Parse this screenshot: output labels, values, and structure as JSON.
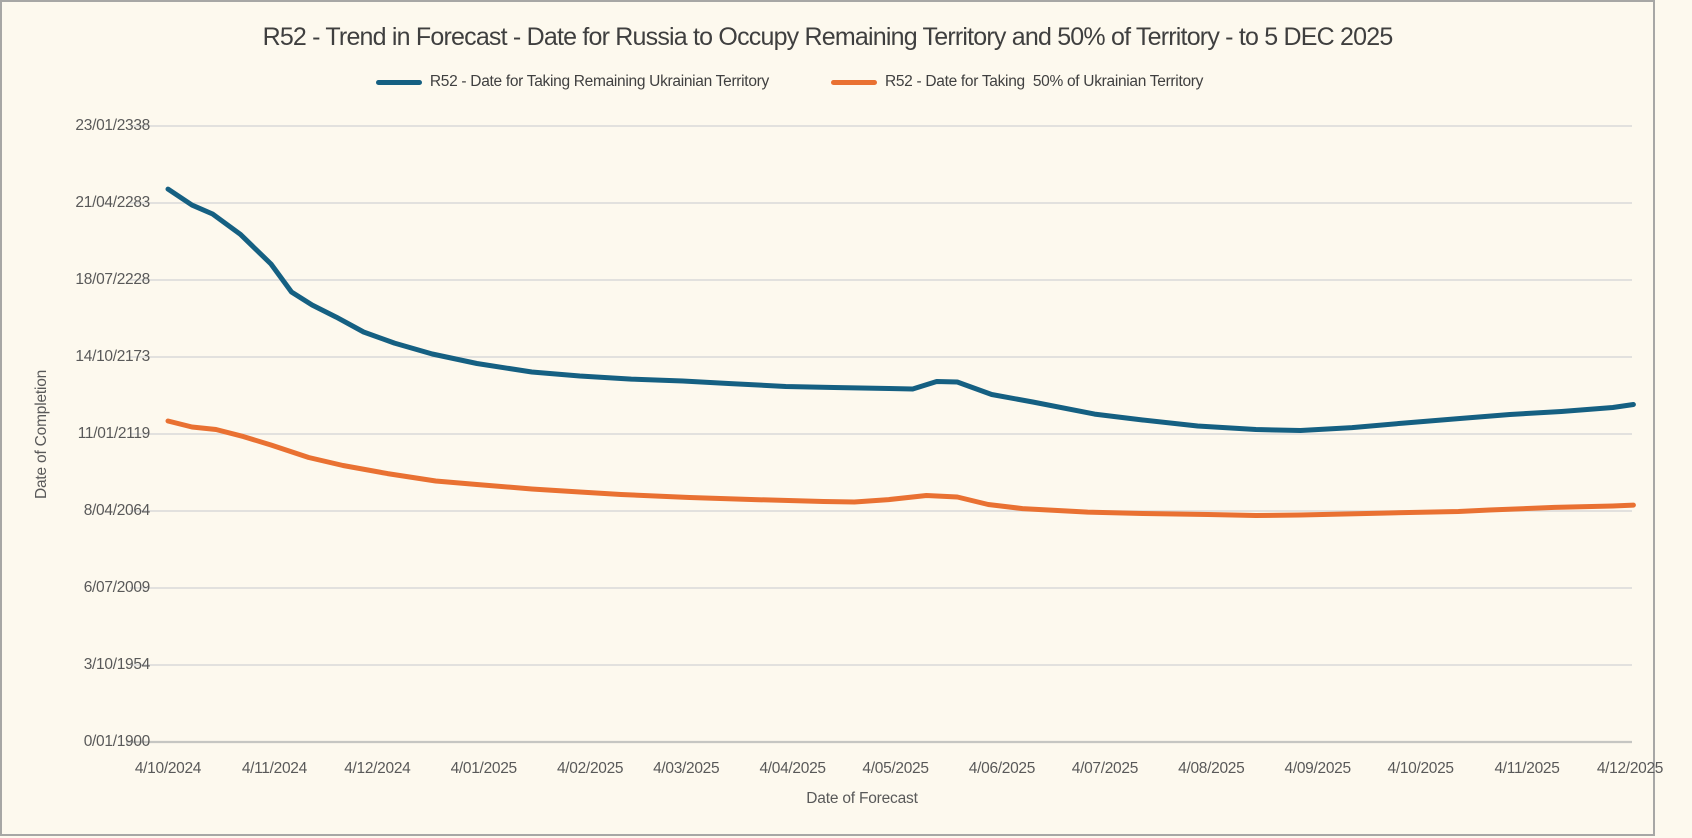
{
  "title": "R52 - Trend in Forecast - Date for Russia to Occupy Remaining Territory and 50% of Territory - to 5 DEC 2025",
  "colors": {
    "background": "#FDF9EE",
    "frame_border": "#A7A7A5",
    "gridline": "#D9D9D9",
    "axis_line": "#C6C6C2",
    "title_text": "#3F3F3F",
    "tick_text": "#595959",
    "series_remaining": "#156082",
    "series_50pct": "#E97132"
  },
  "legend": {
    "items": [
      {
        "label": "R52 - Date for Taking Remaining Ukrainian Territory",
        "color": "#156082"
      },
      {
        "label": "R52 - Date for Taking  50% of Ukrainian Territory",
        "color": "#E97132"
      }
    ]
  },
  "axes": {
    "y_title": "Date of Completion",
    "x_title": "Date of Forecast",
    "y_tick_labels_bottom_to_top": [
      "0/01/1900",
      "3/10/1954",
      "6/07/2009",
      "8/04/2064",
      "11/01/2119",
      "14/10/2173",
      "18/07/2228",
      "21/04/2283",
      "23/01/2338"
    ],
    "x_tick_labels": [
      "4/10/2024",
      "4/11/2024",
      "4/12/2024",
      "4/01/2025",
      "4/02/2025",
      "4/03/2025",
      "4/04/2025",
      "4/05/2025",
      "4/06/2025",
      "4/07/2025",
      "4/08/2025",
      "4/09/2025",
      "4/10/2025",
      "4/11/2025",
      "4/12/2025"
    ]
  },
  "chart_data": {
    "type": "line",
    "title": "R52 - Trend in Forecast - Date for Russia to Occupy Remaining Territory and 50% of Territory - to 5 DEC 2025",
    "xlabel": "Date of Forecast",
    "ylabel": "Date of Completion",
    "x_tick_labels": [
      "4/10/2024",
      "4/11/2024",
      "4/12/2024",
      "4/01/2025",
      "4/02/2025",
      "4/03/2025",
      "4/04/2025",
      "4/05/2025",
      "4/06/2025",
      "4/07/2025",
      "4/08/2025",
      "4/09/2025",
      "4/10/2025",
      "4/11/2025",
      "4/12/2025"
    ],
    "x_tick_day_offsets": [
      0,
      31,
      61,
      92,
      123,
      151,
      182,
      212,
      243,
      273,
      304,
      335,
      365,
      396,
      426
    ],
    "x_range_day_offsets": [
      0,
      427
    ],
    "x_note": "day offset from first forecast 4/10/2024; final point 5/12/2025",
    "y_tick_labels_bottom_to_top": [
      "0/01/1900",
      "3/10/1954",
      "6/07/2009",
      "8/04/2064",
      "11/01/2119",
      "14/10/2173",
      "18/07/2228",
      "21/04/2283",
      "23/01/2338"
    ],
    "y_axis_note": "dates as Excel day serials; gridline spacing = 20000 days (~54.76 years)",
    "y_range_years": [
      1900,
      2338.1
    ],
    "grid": "horizontal",
    "legend_position": "top-center",
    "series": [
      {
        "name": "R52 - Date for Taking Remaining Ukrainian Territory",
        "color": "#156082",
        "points_day_vs_year": [
          [
            0,
            2293.2
          ],
          [
            7,
            2281.8
          ],
          [
            13,
            2275.5
          ],
          [
            21,
            2261.2
          ],
          [
            30,
            2239.9
          ],
          [
            36,
            2220.0
          ],
          [
            42,
            2210.8
          ],
          [
            49,
            2202.2
          ],
          [
            57,
            2191.6
          ],
          [
            66,
            2183.7
          ],
          [
            77,
            2175.9
          ],
          [
            90,
            2169.2
          ],
          [
            106,
            2163.1
          ],
          [
            120,
            2160.3
          ],
          [
            135,
            2158.1
          ],
          [
            150,
            2156.7
          ],
          [
            164,
            2154.9
          ],
          [
            180,
            2152.8
          ],
          [
            194,
            2152.1
          ],
          [
            210,
            2151.4
          ],
          [
            217,
            2151.0
          ],
          [
            224,
            2156.4
          ],
          [
            230,
            2156.0
          ],
          [
            240,
            2147.1
          ],
          [
            252,
            2141.8
          ],
          [
            270,
            2133.2
          ],
          [
            284,
            2129.0
          ],
          [
            300,
            2124.7
          ],
          [
            317,
            2122.2
          ],
          [
            330,
            2121.5
          ],
          [
            345,
            2123.6
          ],
          [
            360,
            2126.8
          ],
          [
            376,
            2130.0
          ],
          [
            391,
            2132.9
          ],
          [
            406,
            2135.0
          ],
          [
            421,
            2137.9
          ],
          [
            427,
            2140.0
          ]
        ]
      },
      {
        "name": "R52 - Date for Taking  50% of Ukrainian Territory",
        "color": "#E97132",
        "points_day_vs_year": [
          [
            0,
            2128.3
          ],
          [
            7,
            2124.0
          ],
          [
            14,
            2122.2
          ],
          [
            22,
            2117.2
          ],
          [
            30,
            2111.2
          ],
          [
            41,
            2102.3
          ],
          [
            51,
            2096.6
          ],
          [
            64,
            2090.9
          ],
          [
            78,
            2085.6
          ],
          [
            90,
            2083.1
          ],
          [
            106,
            2079.9
          ],
          [
            120,
            2077.8
          ],
          [
            132,
            2076.0
          ],
          [
            152,
            2073.9
          ],
          [
            171,
            2072.4
          ],
          [
            191,
            2071.0
          ],
          [
            200,
            2070.7
          ],
          [
            210,
            2072.4
          ],
          [
            221,
            2075.3
          ],
          [
            230,
            2074.2
          ],
          [
            239,
            2068.9
          ],
          [
            249,
            2066.0
          ],
          [
            268,
            2063.5
          ],
          [
            284,
            2062.5
          ],
          [
            303,
            2061.8
          ],
          [
            317,
            2061.1
          ],
          [
            330,
            2061.4
          ],
          [
            354,
            2062.8
          ],
          [
            376,
            2063.9
          ],
          [
            385,
            2065.0
          ],
          [
            404,
            2066.8
          ],
          [
            421,
            2067.8
          ],
          [
            427,
            2068.5
          ]
        ]
      }
    ]
  }
}
